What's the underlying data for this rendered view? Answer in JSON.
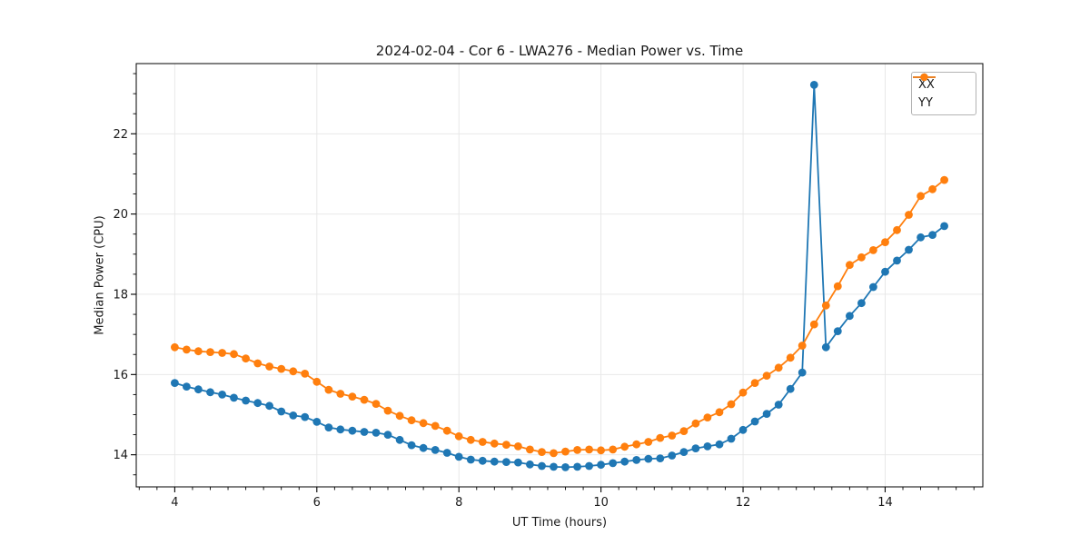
{
  "chart_data": {
    "type": "line",
    "title": "2024-02-04 - Cor 6 - LWA276 - Median Power vs. Time",
    "xlabel": "UT Time (hours)",
    "ylabel": "Median Power (CPU)",
    "xlim": [
      3.458,
      15.375
    ],
    "ylim": [
      13.2,
      23.75
    ],
    "x_major_ticks": [
      4,
      6,
      8,
      10,
      12,
      14
    ],
    "y_major_ticks": [
      14,
      16,
      18,
      20,
      22
    ],
    "x_minor_step": 0.25,
    "y_minor_step": 0.5,
    "grid": true,
    "grid_color": "#e6e6e6",
    "legend_position": "upper right",
    "x": [
      4.0,
      4.167,
      4.333,
      4.5,
      4.667,
      4.833,
      5.0,
      5.167,
      5.333,
      5.5,
      5.667,
      5.833,
      6.0,
      6.167,
      6.333,
      6.5,
      6.667,
      6.833,
      7.0,
      7.167,
      7.333,
      7.5,
      7.667,
      7.833,
      8.0,
      8.167,
      8.333,
      8.5,
      8.667,
      8.833,
      9.0,
      9.167,
      9.333,
      9.5,
      9.667,
      9.833,
      10.0,
      10.167,
      10.333,
      10.5,
      10.667,
      10.833,
      11.0,
      11.167,
      11.333,
      11.5,
      11.667,
      11.833,
      12.0,
      12.167,
      12.333,
      12.5,
      12.667,
      12.833,
      13.0,
      13.167,
      13.333,
      13.5,
      13.667,
      13.833,
      14.0,
      14.167,
      14.333,
      14.5,
      14.667,
      14.833
    ],
    "series": [
      {
        "name": "XX",
        "color": "#1f77b4",
        "values": [
          15.79,
          15.7,
          15.63,
          15.56,
          15.5,
          15.42,
          15.35,
          15.29,
          15.22,
          15.08,
          14.98,
          14.94,
          14.82,
          14.68,
          14.63,
          14.6,
          14.57,
          14.55,
          14.5,
          14.37,
          14.24,
          14.17,
          14.12,
          14.05,
          13.95,
          13.88,
          13.85,
          13.83,
          13.82,
          13.81,
          13.76,
          13.72,
          13.7,
          13.69,
          13.7,
          13.72,
          13.75,
          13.79,
          13.83,
          13.87,
          13.9,
          13.91,
          13.98,
          14.07,
          14.16,
          14.21,
          14.26,
          14.4,
          14.62,
          14.83,
          15.02,
          15.25,
          15.64,
          16.05,
          23.22,
          16.68,
          17.08,
          17.46,
          17.78,
          18.18,
          18.56,
          18.84,
          19.11,
          19.42,
          19.48,
          19.7
        ]
      },
      {
        "name": "YY",
        "color": "#ff7f0e",
        "values": [
          16.68,
          16.62,
          16.58,
          16.56,
          16.54,
          16.51,
          16.4,
          16.28,
          16.2,
          16.14,
          16.08,
          16.02,
          15.82,
          15.62,
          15.52,
          15.45,
          15.37,
          15.27,
          15.1,
          14.97,
          14.86,
          14.79,
          14.72,
          14.6,
          14.46,
          14.37,
          14.32,
          14.28,
          14.25,
          14.21,
          14.13,
          14.07,
          14.04,
          14.08,
          14.12,
          14.13,
          14.11,
          14.13,
          14.2,
          14.26,
          14.32,
          14.42,
          14.48,
          14.59,
          14.78,
          14.93,
          15.06,
          15.26,
          15.55,
          15.79,
          15.97,
          16.17,
          16.42,
          16.72,
          17.25,
          17.72,
          18.2,
          18.73,
          18.92,
          19.1,
          19.3,
          19.6,
          19.98,
          20.45,
          20.62,
          20.85
        ]
      }
    ]
  }
}
